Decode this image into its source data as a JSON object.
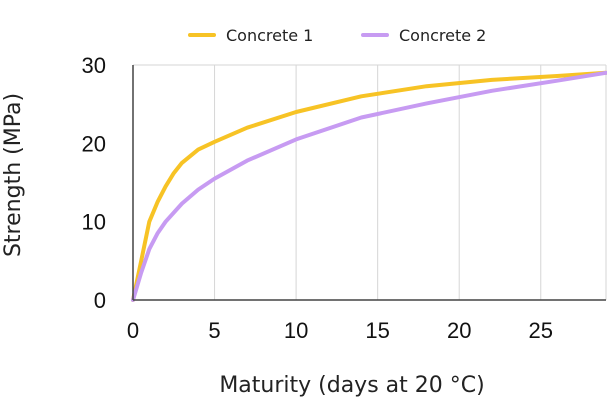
{
  "chart_data": {
    "type": "line",
    "xlabel": "Maturity (days at 20 °C)",
    "ylabel": "Strength (MPa)",
    "xlim": [
      0,
      29
    ],
    "ylim": [
      0,
      30
    ],
    "xticks": [
      "0",
      "5",
      "10",
      "15",
      "20",
      "25"
    ],
    "yticks": [
      "0",
      "10",
      "20",
      "30"
    ],
    "grid": "vertical",
    "legend_position": "top",
    "series": [
      {
        "name": "Concrete 1",
        "color": "#F7C325",
        "x": [
          0,
          0.5,
          1,
          1.5,
          2,
          2.5,
          3,
          4,
          5,
          7,
          10,
          14,
          18,
          22,
          26,
          29
        ],
        "y": [
          0,
          5,
          10,
          12.5,
          14.5,
          16.2,
          17.5,
          19.2,
          20.2,
          22,
          24,
          26,
          27.3,
          28.1,
          28.6,
          29
        ]
      },
      {
        "name": "Concrete 2",
        "color": "#C79BF2",
        "x": [
          0,
          0.5,
          1,
          1.5,
          2,
          3,
          4,
          5,
          7,
          10,
          14,
          18,
          22,
          26,
          29
        ],
        "y": [
          0,
          3.5,
          6.5,
          8.5,
          10,
          12.3,
          14.1,
          15.5,
          17.8,
          20.5,
          23.3,
          25.1,
          26.7,
          28,
          29
        ]
      }
    ]
  }
}
